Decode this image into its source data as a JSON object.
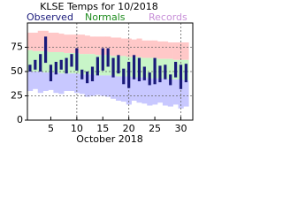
{
  "chart_data": {
    "type": "range",
    "title": "KLSE Temps for 10/2018",
    "x_label": "October 2018",
    "x": [
      1,
      2,
      3,
      4,
      5,
      6,
      7,
      8,
      9,
      10,
      11,
      12,
      13,
      14,
      15,
      16,
      17,
      18,
      19,
      20,
      21,
      22,
      23,
      24,
      25,
      26,
      27,
      28,
      29,
      30,
      31
    ],
    "xlim": [
      0.5,
      32.3
    ],
    "xticks": [
      5,
      10,
      15,
      20,
      25,
      30
    ],
    "x_grid": [
      10,
      20,
      30
    ],
    "ylim": [
      0,
      100
    ],
    "yticks": [
      0,
      25,
      50,
      75
    ],
    "grid": true,
    "series": [
      {
        "name": "Observed",
        "color": "#1a1a7a",
        "low": [
          50,
          52,
          50,
          59,
          40,
          47,
          52,
          48,
          55,
          51,
          42,
          38,
          40,
          46,
          51,
          55,
          44,
          48,
          37,
          33,
          42,
          40,
          41,
          36,
          37,
          39,
          42,
          36,
          44,
          32,
          39
        ],
        "high": [
          57,
          62,
          68,
          86,
          57,
          60,
          62,
          64,
          68,
          74,
          52,
          50,
          55,
          65,
          74,
          74,
          64,
          67,
          53,
          60,
          67,
          64,
          55,
          49,
          64,
          56,
          57,
          47,
          60,
          57,
          58
        ]
      },
      {
        "name": "Normals",
        "color": "#1e8c1e",
        "fill": "#c8f5c8",
        "low": [
          50,
          50,
          50,
          49,
          49,
          49,
          48,
          48,
          48,
          48,
          47,
          47,
          47,
          46,
          46,
          46,
          46,
          45,
          45,
          45,
          44,
          44,
          44,
          43,
          43,
          43,
          43,
          42,
          42,
          42,
          41
        ],
        "high": [
          72,
          71,
          71,
          71,
          70,
          70,
          70,
          69,
          69,
          69,
          68,
          68,
          68,
          67,
          67,
          67,
          66,
          66,
          66,
          65,
          65,
          65,
          64,
          64,
          64,
          63,
          63,
          63,
          62,
          62,
          62
        ]
      },
      {
        "name": "Records",
        "color": "#c890d8",
        "high_fill": "#ffc8c8",
        "low_fill": "#c8c8ff",
        "low": [
          30,
          32,
          28,
          30,
          31,
          28,
          27,
          30,
          30,
          28,
          27,
          24,
          25,
          26,
          25,
          24,
          22,
          20,
          19,
          16,
          20,
          18,
          17,
          15,
          16,
          18,
          15,
          14,
          16,
          12,
          14
        ],
        "high": [
          90,
          90,
          92,
          92,
          90,
          90,
          89,
          88,
          88,
          88,
          88,
          87,
          86,
          86,
          86,
          86,
          85,
          85,
          84,
          84,
          83,
          84,
          82,
          82,
          82,
          81,
          81,
          80,
          80,
          80,
          80
        ]
      }
    ]
  }
}
